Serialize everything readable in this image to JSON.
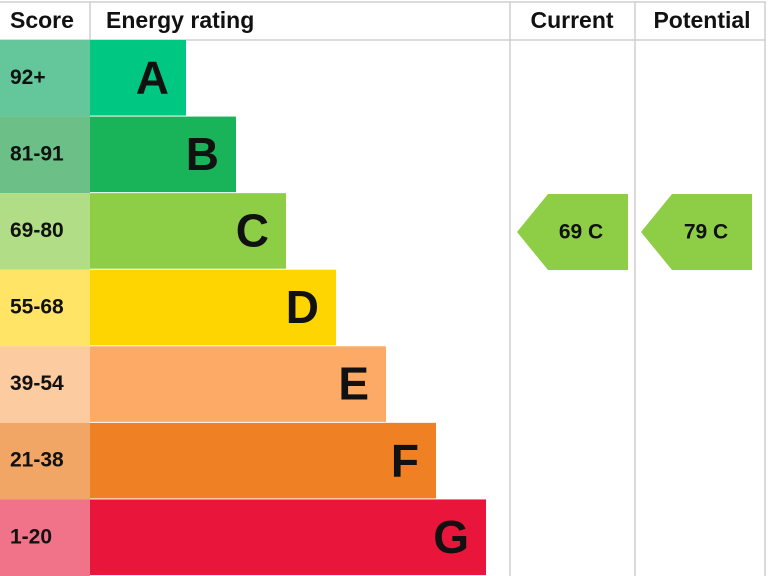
{
  "header": {
    "score": "Score",
    "rating": "Energy rating",
    "current": "Current",
    "potential": "Potential"
  },
  "rows": [
    {
      "score": "92+",
      "band": "A",
      "color": "#00c781",
      "score_color": "#63c79b"
    },
    {
      "score": "81-91",
      "band": "B",
      "color": "#19b459",
      "score_color": "#6bbf87"
    },
    {
      "score": "69-80",
      "band": "C",
      "color": "#8dce46",
      "score_color": "#b0dd86"
    },
    {
      "score": "55-68",
      "band": "D",
      "color": "#ffd500",
      "score_color": "#ffe466"
    },
    {
      "score": "39-54",
      "band": "E",
      "color": "#fcaa65",
      "score_color": "#fdcba0"
    },
    {
      "score": "21-38",
      "band": "F",
      "color": "#ef8023",
      "score_color": "#f2a665"
    },
    {
      "score": "1-20",
      "band": "G",
      "color": "#e9153b",
      "score_color": "#f0738a"
    }
  ],
  "current": {
    "label": "69 C",
    "color": "#8dce46"
  },
  "potential": {
    "label": "79 C",
    "color": "#8dce46"
  }
}
